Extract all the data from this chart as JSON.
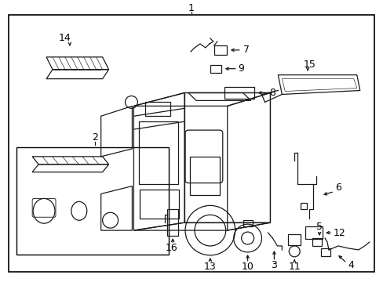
{
  "bg_color": "#ffffff",
  "border_color": "#000000",
  "line_color": "#1a1a1a",
  "text_color": "#000000",
  "fig_width": 4.89,
  "fig_height": 3.6,
  "dpi": 100
}
